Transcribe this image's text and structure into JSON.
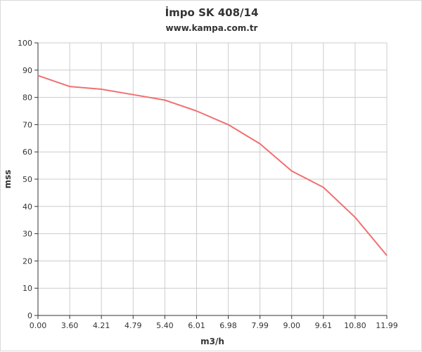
{
  "chart_data": {
    "type": "line",
    "title": "İmpo SK 408/14",
    "subtitle": "www.kampa.com.tr",
    "xlabel": "m3/h",
    "ylabel": "mss",
    "categories": [
      "0.00",
      "3.60",
      "4.21",
      "4.79",
      "5.40",
      "6.01",
      "6.98",
      "7.99",
      "9.00",
      "9.61",
      "10.80",
      "11.99"
    ],
    "series": [
      {
        "values": [
          88,
          84,
          83,
          81,
          79,
          75,
          70,
          63,
          53,
          47,
          36,
          22
        ]
      }
    ],
    "ylim": [
      0,
      100
    ],
    "yticks": [
      0,
      10,
      20,
      30,
      40,
      50,
      60,
      70,
      80,
      90,
      100
    ],
    "grid": true,
    "legend": "none",
    "colors": {
      "line": "#f07070",
      "grid": "#cccccc",
      "axis": "#333333"
    }
  }
}
